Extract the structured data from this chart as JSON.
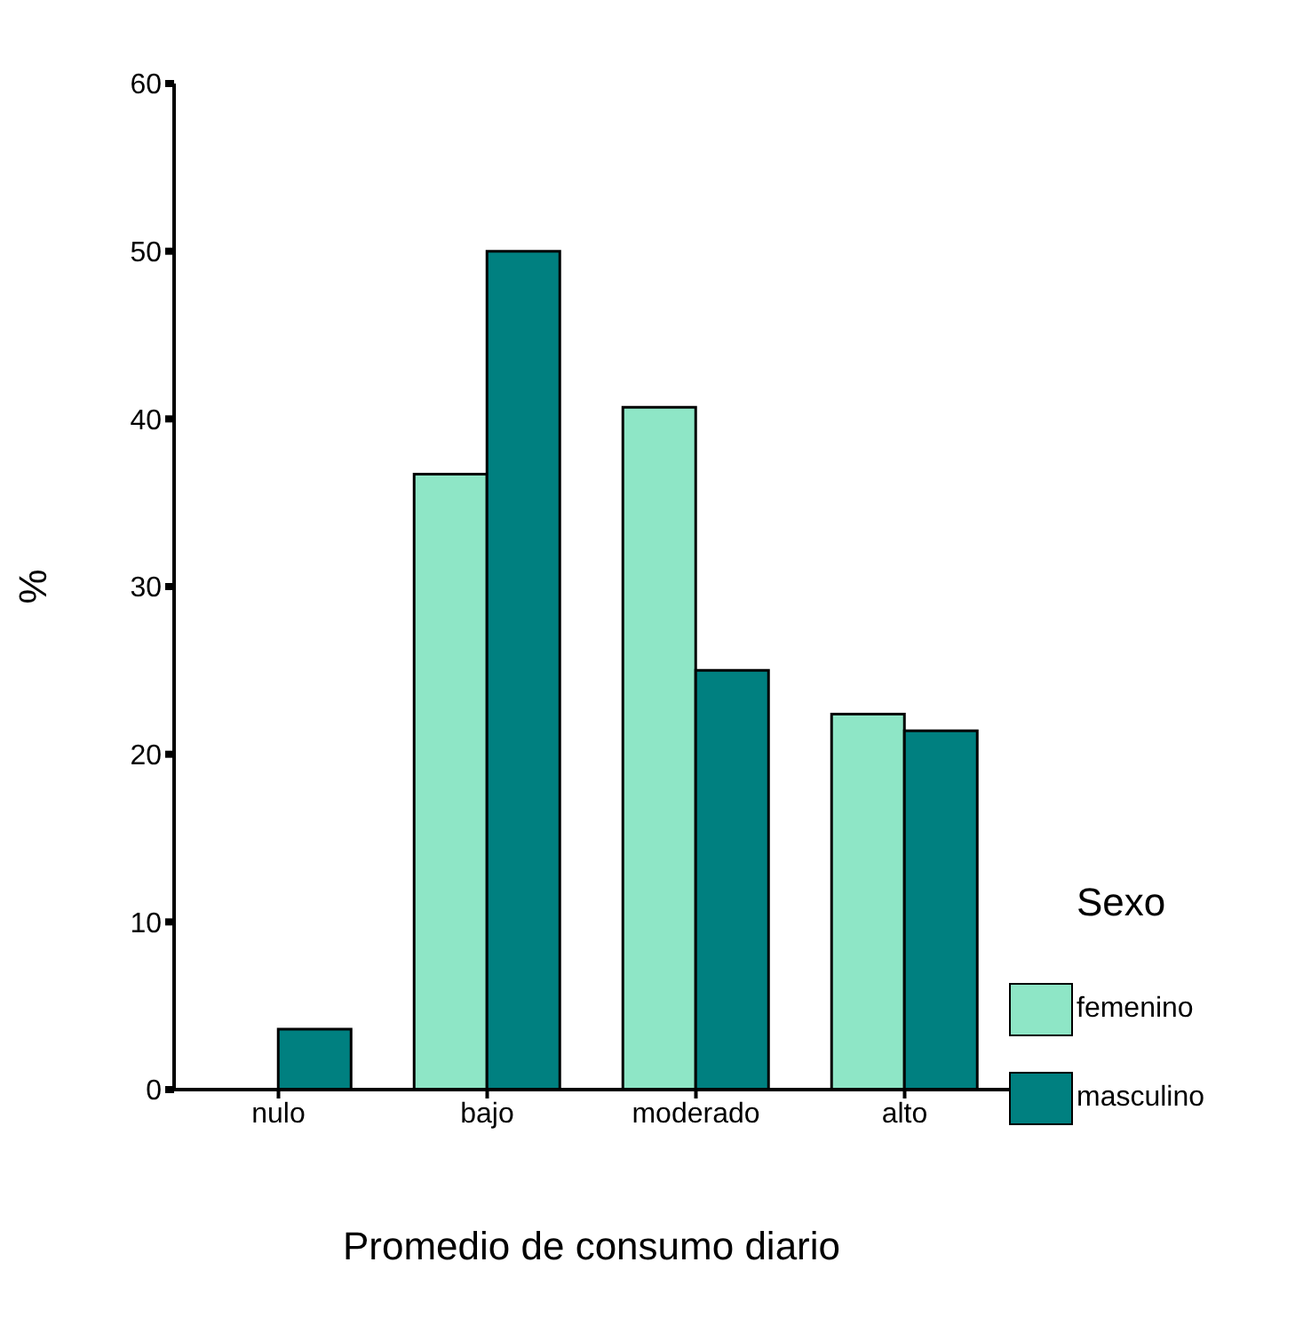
{
  "chart_data": {
    "type": "bar",
    "xlabel": "Promedio de consumo diario",
    "ylabel": "%",
    "legend_title": "Sexo",
    "categories": [
      "nulo",
      "bajo",
      "moderado",
      "alto"
    ],
    "series": [
      {
        "name": "femenino",
        "color": "#8ee6c6",
        "values": [
          0,
          36.7,
          40.7,
          22.4
        ]
      },
      {
        "name": "masculino",
        "color": "#008080",
        "values": [
          3.6,
          50,
          25,
          21.4
        ]
      }
    ],
    "ylim": [
      0,
      60
    ],
    "yticks": [
      0,
      10,
      20,
      30,
      40,
      50,
      60
    ],
    "grid": false,
    "legend": "right"
  }
}
